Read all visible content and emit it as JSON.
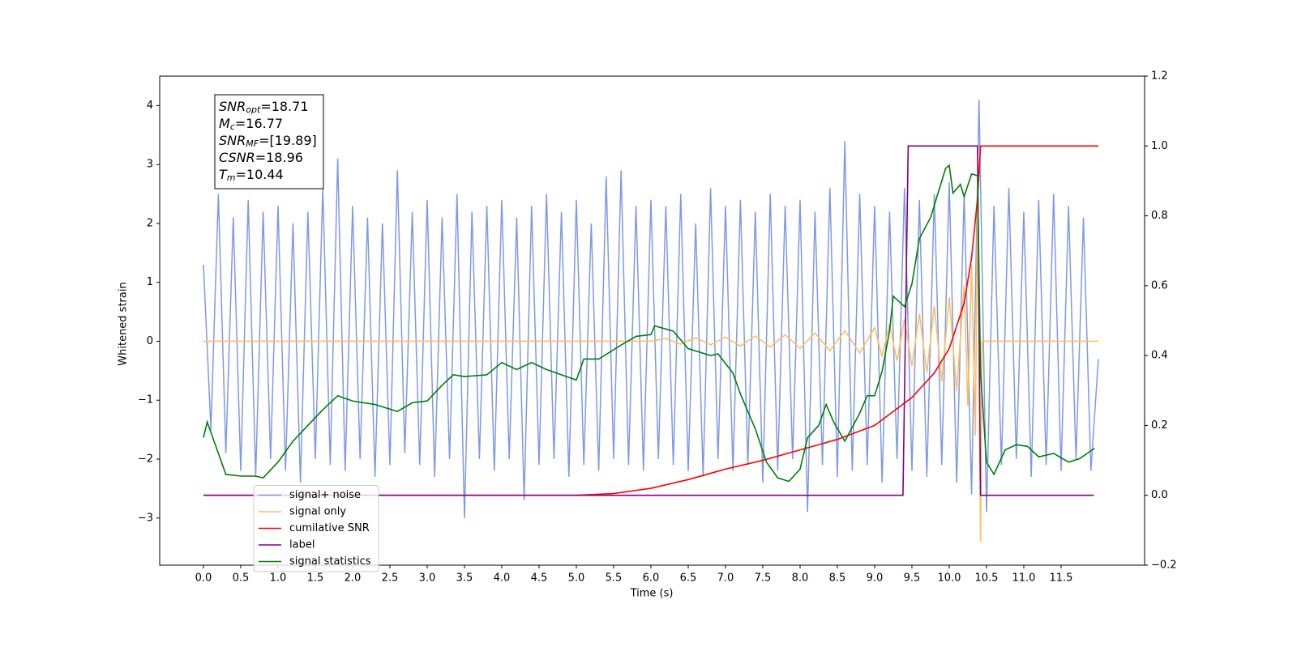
{
  "chart_data": {
    "type": "line",
    "xlabel": "Time (s)",
    "ylabel": "Whitened strain",
    "xlim": [
      -0.587,
      12.62
    ],
    "ylim": [
      -3.8,
      4.5
    ],
    "y2lim": [
      -0.2,
      1.2
    ],
    "xticks": [
      {
        "value": 0,
        "label": "0.0"
      },
      0.5,
      {
        "value": 1,
        "label": "1.0"
      },
      1.5,
      {
        "value": 2,
        "label": "2.0"
      },
      2.5,
      {
        "value": 3,
        "label": "3.0"
      },
      3.5,
      {
        "value": 4,
        "label": "4.0"
      },
      4.5,
      {
        "value": 5,
        "label": "5.0"
      },
      5.5,
      {
        "value": 6,
        "label": "6.0"
      },
      6.5,
      {
        "value": 7,
        "label": "7.0"
      },
      7.5,
      {
        "value": 8,
        "label": "8.0"
      },
      8.5,
      {
        "value": 9,
        "label": "9.0"
      },
      9.5,
      {
        "value": 10,
        "label": "10.0"
      },
      10.5,
      {
        "value": 11,
        "label": "11.0"
      },
      11.5
    ],
    "yticks": [
      {
        "value": -3,
        "label": "−3"
      },
      {
        "value": -2,
        "label": "−2"
      },
      {
        "value": -1,
        "label": "−1"
      },
      0,
      1,
      2,
      3,
      4
    ],
    "y2ticks": [
      {
        "value": -0.2,
        "label": "−0.2"
      },
      {
        "value": 0,
        "label": "0.0"
      },
      0.2,
      0.4,
      0.6,
      0.8,
      {
        "value": 1,
        "label": "1.0"
      },
      1.2
    ],
    "legend": "lower left",
    "annotations": [
      {
        "main": "SNR",
        "sub": "opt",
        "rest": "=18.71"
      },
      {
        "main": "M",
        "sub": "c",
        "rest": "=16.77"
      },
      {
        "main": "SNR",
        "sub": "MF",
        "rest": "=[19.89]"
      },
      {
        "main": "CSNR",
        "rest": "=18.96"
      },
      {
        "main": "T",
        "sub": "m",
        "rest": "=10.44"
      }
    ],
    "series": [
      {
        "name": "signal+ noise",
        "color": "#7893e8",
        "x": [
          0,
          0.1,
          0.2,
          0.3,
          0.4,
          0.5,
          0.6,
          0.7,
          0.8,
          0.9,
          1,
          1.1,
          1.2,
          1.3,
          1.4,
          1.5,
          1.6,
          1.7,
          1.8,
          1.9,
          2,
          2.1,
          2.2,
          2.3,
          2.4,
          2.5,
          2.6,
          2.7,
          2.8,
          2.9,
          3,
          3.1,
          3.2,
          3.3,
          3.4,
          3.5,
          3.6,
          3.7,
          3.8,
          3.9,
          4,
          4.1,
          4.2,
          4.3,
          4.4,
          4.5,
          4.6,
          4.7,
          4.8,
          4.9,
          5,
          5.1,
          5.2,
          5.3,
          5.4,
          5.5,
          5.6,
          5.7,
          5.8,
          5.9,
          6,
          6.1,
          6.2,
          6.3,
          6.4,
          6.5,
          6.6,
          6.7,
          6.8,
          6.9,
          7,
          7.1,
          7.2,
          7.3,
          7.4,
          7.5,
          7.6,
          7.7,
          7.8,
          7.9,
          8,
          8.1,
          8.2,
          8.3,
          8.4,
          8.5,
          8.6,
          8.7,
          8.8,
          8.9,
          9,
          9.1,
          9.2,
          9.3,
          9.4,
          9.5,
          9.6,
          9.7,
          9.8,
          9.9,
          10,
          10.1,
          10.2,
          10.3,
          10.4,
          10.5,
          10.6,
          10.7,
          10.8,
          10.9,
          11,
          11.1,
          11.2,
          11.3,
          11.4,
          11.5,
          11.6,
          11.7,
          11.8,
          11.9,
          12
        ],
        "values": [
          1.3,
          -1.5,
          2.5,
          -1.9,
          2.1,
          -2.2,
          2.4,
          -2.3,
          2.2,
          -2.0,
          2.3,
          -2.2,
          2.0,
          -2.4,
          2.2,
          -2.0,
          2.6,
          -2.1,
          3.1,
          -2.2,
          2.3,
          -2.0,
          2.1,
          -2.3,
          2.0,
          -2.1,
          2.9,
          -1.9,
          2.2,
          -2.1,
          2.4,
          -2.3,
          2.1,
          -2.0,
          2.5,
          -3.0,
          2.2,
          -2.0,
          2.3,
          -2.2,
          2.4,
          -2.0,
          2.1,
          -2.7,
          2.3,
          -2.1,
          2.5,
          -2.0,
          2.2,
          -2.3,
          2.4,
          -2.1,
          2.0,
          -2.2,
          2.8,
          -2.0,
          2.9,
          -2.1,
          2.3,
          -2.2,
          2.4,
          -2.0,
          2.3,
          -2.1,
          2.5,
          -2.2,
          2.0,
          -2.3,
          2.6,
          -2.0,
          2.3,
          -2.2,
          2.4,
          -2.1,
          2.2,
          -2.4,
          2.5,
          -2.2,
          2.3,
          -2.0,
          2.4,
          -2.9,
          2.2,
          -2.1,
          2.6,
          -2.3,
          3.4,
          -2.2,
          2.5,
          -2.1,
          2.3,
          -2.4,
          2.2,
          -2.0,
          2.6,
          -2.2,
          2.4,
          -2.3,
          2.5,
          -2.1,
          2.7,
          -2.4,
          2.5,
          -2.6,
          4.1,
          -2.9,
          2.3,
          -2.1,
          2.6,
          -2.0,
          2.2,
          -2.3,
          2.4,
          -2.1,
          2.5,
          -2.2,
          2.3,
          -2.0,
          2.1,
          -2.2,
          -0.3
        ]
      },
      {
        "name": "signal only",
        "color": "#ffbf60",
        "x": [
          0,
          6,
          6.2,
          6.4,
          6.6,
          6.8,
          7,
          7.2,
          7.4,
          7.6,
          7.8,
          8,
          8.2,
          8.4,
          8.6,
          8.8,
          9,
          9.1,
          9.2,
          9.3,
          9.4,
          9.5,
          9.6,
          9.7,
          9.8,
          9.9,
          10,
          10.1,
          10.2,
          10.25,
          10.3,
          10.35,
          10.38,
          10.42,
          10.44,
          12
        ],
        "values": [
          0,
          0,
          0.05,
          -0.05,
          0.06,
          -0.06,
          0.07,
          -0.08,
          0.09,
          -0.1,
          0.11,
          -0.12,
          0.14,
          -0.16,
          0.18,
          -0.2,
          0.23,
          -0.26,
          0.29,
          -0.33,
          0.37,
          -0.42,
          0.47,
          -0.53,
          0.6,
          -0.68,
          0.75,
          -0.85,
          0.95,
          -1.1,
          1.3,
          -1.6,
          2.3,
          -3.4,
          0,
          0
        ]
      },
      {
        "name": "cumilative SNR",
        "color": "#ff0000",
        "axis": "y2",
        "x": [
          0,
          5,
          5.5,
          6,
          6.5,
          7,
          7.5,
          8,
          8.5,
          9,
          9.5,
          9.8,
          10,
          10.2,
          10.3,
          10.38,
          10.42,
          10.44,
          12
        ],
        "values": [
          0,
          0,
          0.005,
          0.02,
          0.045,
          0.075,
          0.1,
          0.13,
          0.16,
          0.2,
          0.28,
          0.35,
          0.42,
          0.55,
          0.68,
          0.85,
          1.0,
          1.0,
          1.0
        ]
      },
      {
        "name": "label",
        "color": "#800080",
        "axis": "y2",
        "x": [
          0,
          9.38,
          9.45,
          10.38,
          10.42,
          11.94
        ],
        "values": [
          0,
          0,
          1,
          1,
          0,
          0
        ]
      },
      {
        "name": "signal statistics",
        "color": "#008000",
        "axis": "y2",
        "x": [
          0,
          0.05,
          0.15,
          0.3,
          0.5,
          0.7,
          0.8,
          1,
          1.2,
          1.4,
          1.6,
          1.8,
          2,
          2.3,
          2.6,
          2.8,
          3,
          3.2,
          3.35,
          3.5,
          3.8,
          4,
          4.2,
          4.4,
          4.6,
          4.8,
          5,
          5.1,
          5.3,
          5.6,
          5.8,
          6,
          6.05,
          6.3,
          6.5,
          6.8,
          6.9,
          7.1,
          7.2,
          7.4,
          7.55,
          7.7,
          7.85,
          8,
          8.1,
          8.25,
          8.35,
          8.45,
          8.6,
          8.8,
          8.9,
          9,
          9.1,
          9.2,
          9.25,
          9.4,
          9.5,
          9.6,
          9.75,
          9.85,
          9.95,
          10,
          10.05,
          10.15,
          10.2,
          10.3,
          10.38,
          10.42,
          10.5,
          10.6,
          10.75,
          10.9,
          11.05,
          11.2,
          11.4,
          11.6,
          11.75,
          11.95
        ],
        "values": [
          0.165,
          0.21,
          0.15,
          0.06,
          0.055,
          0.055,
          0.05,
          0.095,
          0.155,
          0.2,
          0.245,
          0.285,
          0.27,
          0.26,
          0.24,
          0.265,
          0.27,
          0.315,
          0.345,
          0.34,
          0.345,
          0.38,
          0.36,
          0.38,
          0.36,
          0.345,
          0.33,
          0.39,
          0.39,
          0.43,
          0.455,
          0.46,
          0.485,
          0.47,
          0.42,
          0.4,
          0.405,
          0.35,
          0.29,
          0.19,
          0.095,
          0.05,
          0.04,
          0.075,
          0.165,
          0.2,
          0.26,
          0.21,
          0.155,
          0.235,
          0.285,
          0.285,
          0.355,
          0.47,
          0.57,
          0.54,
          0.605,
          0.735,
          0.795,
          0.865,
          0.935,
          0.945,
          0.865,
          0.89,
          0.855,
          0.92,
          0.915,
          0.35,
          0.095,
          0.06,
          0.13,
          0.145,
          0.14,
          0.11,
          0.12,
          0.095,
          0.105,
          0.135
        ]
      }
    ]
  }
}
